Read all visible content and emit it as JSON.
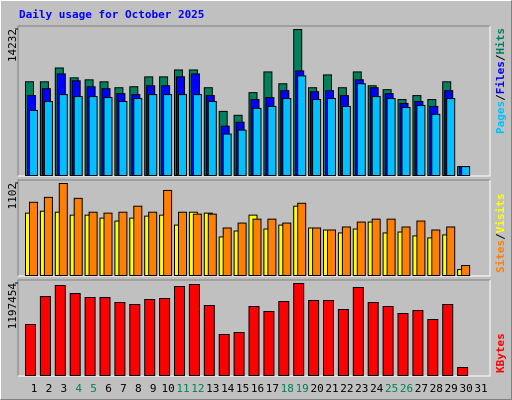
{
  "chart_data": {
    "type": "bar",
    "title": "Daily usage for October 2025",
    "title_color": "#0000ff",
    "categories": [
      "1",
      "2",
      "3",
      "4",
      "5",
      "6",
      "7",
      "8",
      "9",
      "10",
      "11",
      "12",
      "13",
      "14",
      "15",
      "16",
      "17",
      "18",
      "19",
      "20",
      "21",
      "22",
      "23",
      "24",
      "25",
      "26",
      "27",
      "28",
      "29",
      "30",
      "31"
    ],
    "category_colors": [
      "#000000",
      "#000000",
      "#000000",
      "#00805c",
      "#00805c",
      "#000000",
      "#000000",
      "#000000",
      "#000000",
      "#000000",
      "#00805c",
      "#00805c",
      "#000000",
      "#000000",
      "#000000",
      "#000000",
      "#000000",
      "#00805c",
      "#00805c",
      "#000000",
      "#000000",
      "#000000",
      "#000000",
      "#000000",
      "#00805c",
      "#00805c",
      "#000000",
      "#000000",
      "#000000",
      "#000000",
      "#000000"
    ],
    "legend_separator": "/",
    "panels": [
      {
        "ylim": [
          0,
          14232
        ],
        "yticks": [
          14232
        ],
        "series": [
          {
            "name": "Pages",
            "color": "#00c0ff",
            "values": [
              6347,
              7212,
              7885,
              7693,
              7693,
              7597,
              7212,
              7500,
              7885,
              7885,
              7885,
              7885,
              7212,
              4039,
              4423,
              6539,
              6731,
              7500,
              9712,
              7404,
              7500,
              6731,
              8943,
              7693,
              7500,
              6635,
              6827,
              5962,
              7500,
              865,
              0
            ]
          },
          {
            "name": "Files",
            "color": "#0000ff",
            "values": [
              7789,
              8462,
              9904,
              9231,
              8654,
              8462,
              7981,
              7885,
              8750,
              8750,
              9616,
              9904,
              7789,
              4808,
              5193,
              7404,
              7597,
              8270,
              10193,
              8174,
              8270,
              7789,
              9328,
              8558,
              7981,
              7020,
              7212,
              6731,
              8270,
              865,
              0
            ]
          },
          {
            "name": "Hits",
            "color": "#00805c",
            "values": [
              9135,
              9135,
              10481,
              9520,
              9327,
              9135,
              8558,
              8654,
              9616,
              9616,
              10289,
              10289,
              8558,
              6250,
              5866,
              8077,
              10097,
              8943,
              14232,
              8558,
              9808,
              8558,
              10097,
              8751,
              8366,
              7404,
              7789,
              7404,
              9135,
              865,
              0
            ]
          }
        ]
      },
      {
        "ylim": [
          0,
          1102
        ],
        "yticks": [
          1102
        ],
        "series": [
          {
            "name": "Sites",
            "color": "#ff8000",
            "values": [
              877,
              936,
              1102,
              924,
              758,
              747,
              758,
              830,
              758,
              1019,
              758,
              735,
              735,
              569,
              628,
              675,
              675,
              628,
              865,
              569,
              545,
              581,
              640,
              675,
              675,
              581,
              652,
              545,
              581,
              119,
              0
            ]
          },
          {
            "name": "Visits",
            "color": "#ffff00",
            "values": [
              747,
              770,
              758,
              723,
              723,
              687,
              652,
              687,
              711,
              723,
              604,
              758,
              747,
              462,
              533,
              723,
              557,
              604,
              830,
              569,
              545,
              510,
              557,
              640,
              510,
              521,
              474,
              450,
              486,
              71,
              0
            ]
          }
        ]
      },
      {
        "ylim": [
          0,
          1197454
        ],
        "yticks": [
          1197454
        ],
        "series": [
          {
            "name": "KBytes",
            "color": "#ff0000",
            "values": [
              663816,
              1028264,
              1171440,
              1067312,
              1015248,
              1015248,
              950168,
              924136,
              989216,
              1002232,
              1158424,
              1184456,
              911120,
              533656,
              559688,
              898104,
              833024,
              963184,
              1197454,
              976200,
              976200,
              859056,
              1145408,
              950168,
              898104,
              806992,
              846040,
              728896,
              924136,
              104128,
              0
            ]
          }
        ]
      }
    ]
  }
}
